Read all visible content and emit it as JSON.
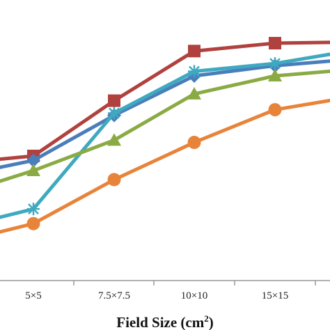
{
  "chart_data": {
    "type": "line",
    "xlabel_main": "Field Size (cm",
    "xlabel_sup": "2",
    "xlabel_tail": ")",
    "ylabel": "",
    "categories": [
      "5×5",
      "7.5×7.5",
      "10×10",
      "15×15"
    ],
    "x_positions": [
      5,
      7.5,
      10,
      15
    ],
    "grid": false,
    "series": [
      {
        "color": "#b0413e",
        "marker": "square",
        "points": [
          [
            0,
            0.893
          ],
          [
            5,
            0.9
          ],
          [
            7.5,
            0.949
          ],
          [
            10,
            0.993
          ],
          [
            15,
            1.0
          ],
          [
            20,
            1.001
          ]
        ]
      },
      {
        "color": "#4a7ebb",
        "marker": "diamond",
        "points": [
          [
            0,
            0.881
          ],
          [
            5,
            0.896
          ],
          [
            7.5,
            0.936
          ],
          [
            10,
            0.971
          ],
          [
            15,
            0.98
          ],
          [
            20,
            0.986
          ]
        ]
      },
      {
        "color": "#3fa9c0",
        "marker": "asterisk",
        "points": [
          [
            0,
            0.835
          ],
          [
            5,
            0.853
          ],
          [
            7.5,
            0.938
          ],
          [
            10,
            0.975
          ],
          [
            15,
            0.982
          ],
          [
            20,
            0.994
          ]
        ]
      },
      {
        "color": "#8aab44",
        "marker": "triangle",
        "points": [
          [
            0,
            0.864
          ],
          [
            5,
            0.887
          ],
          [
            7.5,
            0.914
          ],
          [
            10,
            0.955
          ],
          [
            15,
            0.971
          ],
          [
            20,
            0.977
          ]
        ]
      },
      {
        "color": "#e8843a",
        "marker": "circle",
        "points": [
          [
            0,
            0.822
          ],
          [
            5,
            0.84
          ],
          [
            7.5,
            0.879
          ],
          [
            10,
            0.912
          ],
          [
            15,
            0.941
          ],
          [
            20,
            0.953
          ]
        ]
      }
    ]
  }
}
